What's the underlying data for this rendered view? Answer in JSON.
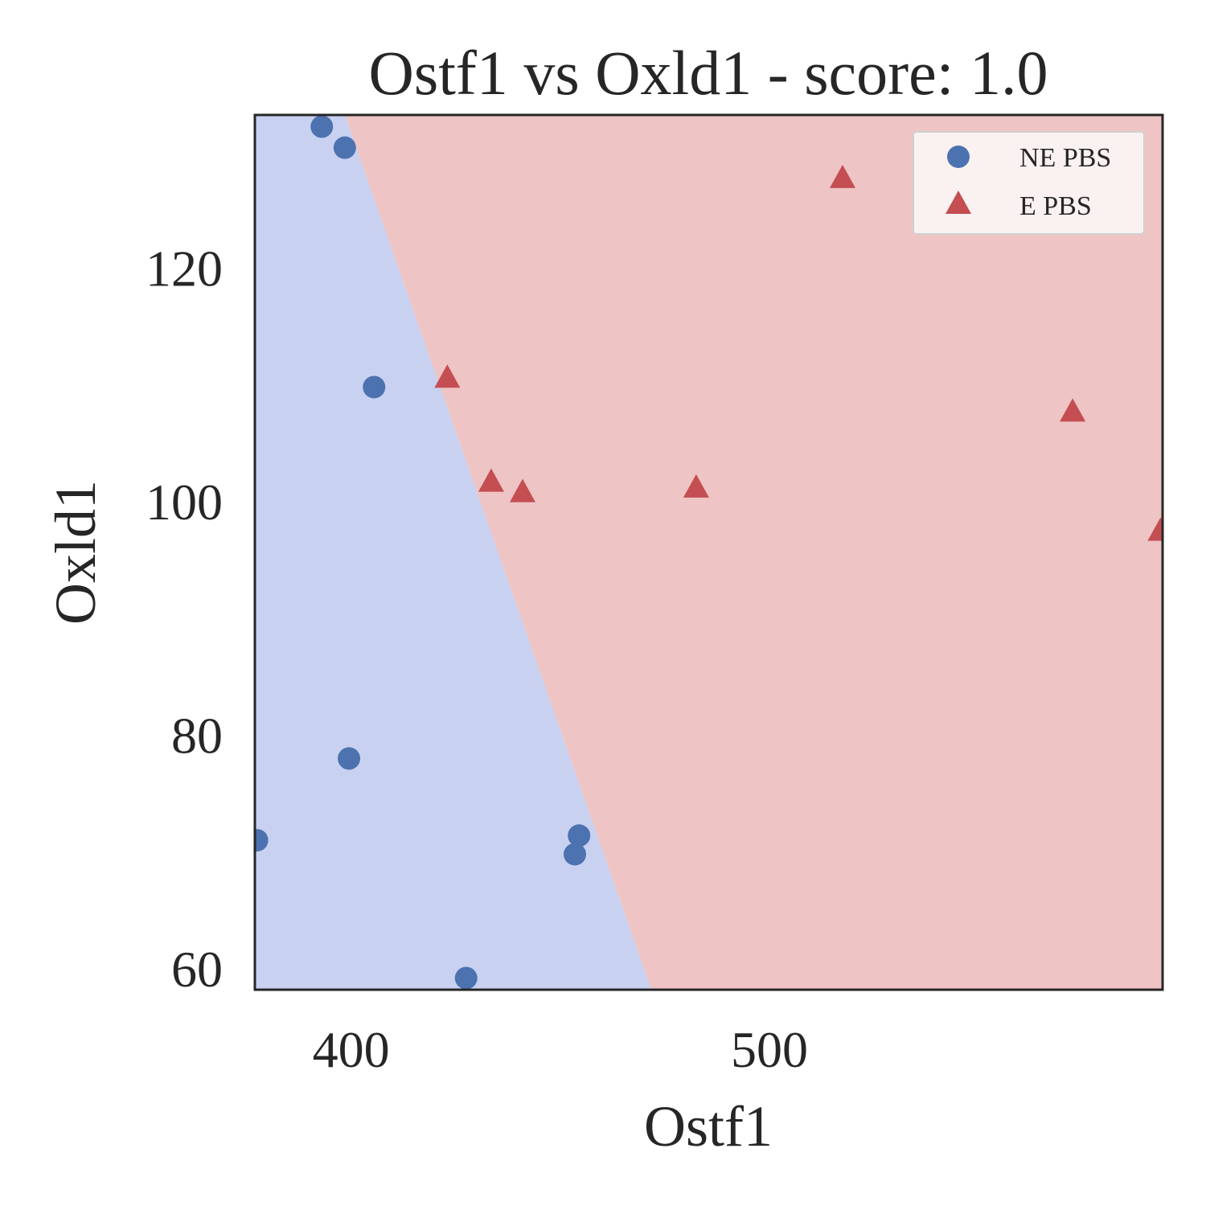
{
  "chart_data": {
    "type": "scatter",
    "title": "Ostf1 vs Oxld1 - score: 1.0",
    "xlabel": "Ostf1",
    "ylabel": "Oxld1",
    "xlim": [
      377,
      594
    ],
    "ylim": [
      58.2,
      133.1
    ],
    "xticks": [
      400,
      500
    ],
    "yticks": [
      60,
      80,
      100,
      120
    ],
    "grid": false,
    "legend_position": "top-right",
    "decision_boundary": {
      "points": [
        [
          398.5,
          133.1
        ],
        [
          471.8,
          58.2
        ]
      ],
      "region_colors": {
        "NE PBS": "#c9d1f1",
        "E PBS": "#eec4c4"
      }
    },
    "series": [
      {
        "name": "NE PBS",
        "marker": "circle",
        "color": "#4c72b0",
        "points": [
          [
            393.0,
            132.1
          ],
          [
            398.5,
            130.3
          ],
          [
            405.5,
            109.8
          ],
          [
            377.5,
            71.0
          ],
          [
            399.5,
            78.0
          ],
          [
            427.5,
            59.2
          ],
          [
            453.5,
            69.8
          ],
          [
            454.5,
            71.4
          ]
        ]
      },
      {
        "name": "E PBS",
        "marker": "triangle",
        "color": "#c44e52",
        "points": [
          [
            423.0,
            110.5
          ],
          [
            433.5,
            101.6
          ],
          [
            441.0,
            100.7
          ],
          [
            482.5,
            101.1
          ],
          [
            517.5,
            127.6
          ],
          [
            572.5,
            107.6
          ],
          [
            593.5,
            97.4
          ]
        ]
      }
    ]
  }
}
